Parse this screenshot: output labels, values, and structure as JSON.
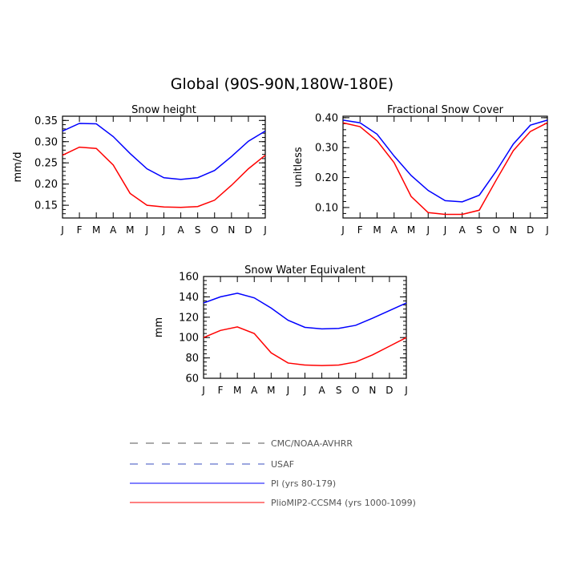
{
  "figure": {
    "title": "Global (90S-90N,180W-180E)"
  },
  "chart_data": [
    {
      "type": "line",
      "title": "Snow height",
      "ylabel": "mm/d",
      "xlabel": "",
      "categories": [
        "J",
        "F",
        "M",
        "A",
        "M",
        "J",
        "J",
        "A",
        "S",
        "O",
        "N",
        "D",
        "J"
      ],
      "ylim": [
        0.12,
        0.36
      ],
      "yticks": [
        0.15,
        0.2,
        0.25,
        0.3,
        0.35
      ],
      "ytick_labels": [
        "0.15",
        "0.20",
        "0.25",
        "0.30",
        "0.35"
      ],
      "series": [
        {
          "name": "PI (yrs 80-179)",
          "color": "#0000ff",
          "values": [
            0.325,
            0.343,
            0.342,
            0.312,
            0.272,
            0.236,
            0.215,
            0.211,
            0.215,
            0.232,
            0.265,
            0.301,
            0.325
          ]
        },
        {
          "name": "PlioMIP2-CCSM4 (yrs 1000-1099)",
          "color": "#ff0000",
          "values": [
            0.268,
            0.287,
            0.284,
            0.245,
            0.178,
            0.15,
            0.146,
            0.145,
            0.147,
            0.162,
            0.197,
            0.236,
            0.268
          ]
        }
      ]
    },
    {
      "type": "line",
      "title": "Fractional Snow Cover",
      "ylabel": "unitless",
      "xlabel": "",
      "categories": [
        "J",
        "F",
        "M",
        "A",
        "M",
        "J",
        "J",
        "A",
        "S",
        "O",
        "N",
        "D",
        "J"
      ],
      "ylim": [
        0.065,
        0.405
      ],
      "yticks": [
        0.1,
        0.2,
        0.3,
        0.4
      ],
      "ytick_labels": [
        "0.10",
        "0.20",
        "0.30",
        "0.40"
      ],
      "series": [
        {
          "name": "PI (yrs 80-179)",
          "color": "#0000ff",
          "values": [
            0.392,
            0.383,
            0.345,
            0.272,
            0.207,
            0.157,
            0.123,
            0.119,
            0.141,
            0.222,
            0.312,
            0.375,
            0.392
          ]
        },
        {
          "name": "PlioMIP2-CCSM4 (yrs 1000-1099)",
          "color": "#ff0000",
          "values": [
            0.383,
            0.37,
            0.323,
            0.25,
            0.137,
            0.083,
            0.077,
            0.077,
            0.091,
            0.192,
            0.29,
            0.354,
            0.383
          ]
        }
      ]
    },
    {
      "type": "line",
      "title": "Snow Water Equivalent",
      "ylabel": "mm",
      "xlabel": "",
      "categories": [
        "J",
        "F",
        "M",
        "A",
        "M",
        "J",
        "J",
        "A",
        "S",
        "O",
        "N",
        "D",
        "J"
      ],
      "ylim": [
        60,
        160
      ],
      "yticks": [
        60,
        80,
        100,
        120,
        140,
        160
      ],
      "ytick_labels": [
        "60",
        "80",
        "100",
        "120",
        "140",
        "160"
      ],
      "series": [
        {
          "name": "PI (yrs 80-179)",
          "color": "#0000ff",
          "values": [
            134,
            140,
            143.5,
            139,
            129,
            117,
            110,
            108.5,
            109,
            112,
            119,
            126.5,
            134
          ]
        },
        {
          "name": "PlioMIP2-CCSM4 (yrs 1000-1099)",
          "color": "#ff0000",
          "values": [
            100,
            107,
            110.5,
            104,
            85,
            75,
            73,
            72.5,
            73,
            76,
            83,
            91.5,
            100
          ]
        }
      ]
    }
  ],
  "legend": {
    "placement": "bottom-center",
    "items": [
      {
        "label": "CMC/NOAA-AVHRR",
        "color": "#555555",
        "style": "dashed"
      },
      {
        "label": "USAF",
        "color": "#3a4fbf",
        "style": "dashed"
      },
      {
        "label": "PI (yrs 80-179)",
        "color": "#0000ff",
        "style": "solid"
      },
      {
        "label": "PlioMIP2-CCSM4 (yrs 1000-1099)",
        "color": "#ff0000",
        "style": "solid"
      }
    ]
  }
}
